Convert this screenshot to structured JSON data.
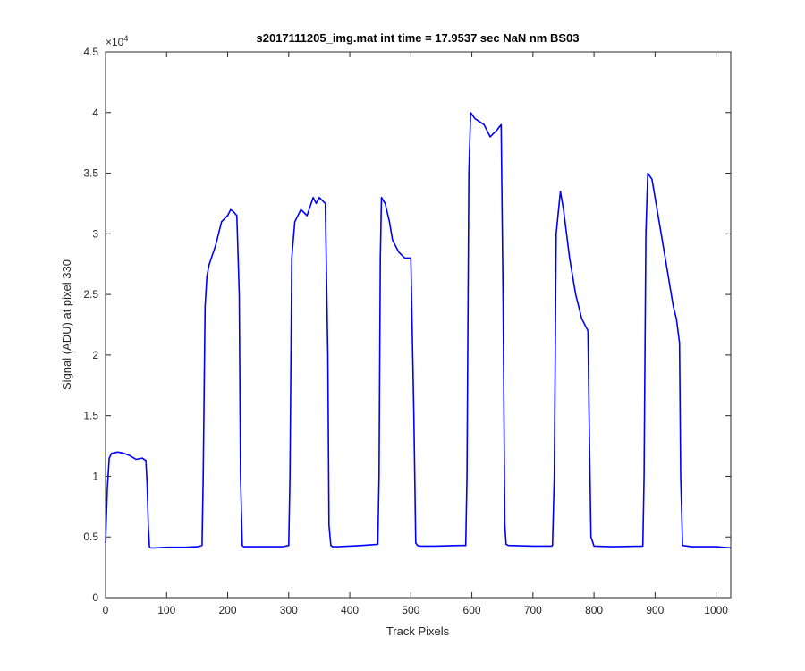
{
  "chart_data": {
    "type": "line",
    "title": "s2017111205_img.mat int time = 17.9537 sec  NaN nm BS03",
    "xlabel": "Track Pixels",
    "ylabel": "Signal (ADU) at pixel 330",
    "xlim": [
      0,
      1024
    ],
    "ylim": [
      0,
      45000
    ],
    "x_ticks": [
      0,
      100,
      200,
      300,
      400,
      500,
      600,
      700,
      800,
      900,
      1000
    ],
    "x_tick_labels": [
      "0",
      "100",
      "200",
      "300",
      "400",
      "500",
      "600",
      "700",
      "800",
      "900",
      "1000"
    ],
    "y_ticks": [
      0,
      5000,
      10000,
      15000,
      20000,
      25000,
      30000,
      35000,
      40000,
      45000
    ],
    "y_tick_labels": [
      "0",
      "0.5",
      "1",
      "1.5",
      "2",
      "2.5",
      "3",
      "3.5",
      "4",
      "4.5"
    ],
    "y_exponent_base": "×10",
    "y_exponent_power": "4",
    "grid": false,
    "line_color": "#0000ff",
    "series": [
      {
        "x": [
          0,
          3,
          6,
          10,
          20,
          30,
          40,
          50,
          60,
          66,
          68,
          70,
          72,
          74,
          80,
          100,
          130,
          150,
          158,
          160,
          163,
          166,
          170,
          180,
          190,
          200,
          205,
          210,
          215,
          219,
          221,
          224,
          226,
          230,
          260,
          290,
          300,
          302,
          305,
          310,
          320,
          330,
          340,
          345,
          350,
          360,
          364,
          366,
          369,
          372,
          380,
          420,
          446,
          448,
          450,
          452,
          458,
          465,
          470,
          480,
          490,
          500,
          505,
          508,
          511,
          515,
          540,
          580,
          590,
          592,
          595,
          598,
          605,
          620,
          630,
          640,
          648,
          651,
          654,
          656,
          660,
          700,
          730,
          732,
          735,
          738,
          745,
          750,
          760,
          770,
          780,
          790,
          792,
          795,
          800,
          830,
          880,
          882,
          885,
          888,
          895,
          910,
          920,
          930,
          935,
          940,
          942,
          945,
          960,
          1000,
          1024
        ],
        "y": [
          4500,
          9000,
          11500,
          11900,
          12000,
          11900,
          11700,
          11400,
          11500,
          11300,
          9500,
          6000,
          4200,
          4100,
          4100,
          4150,
          4150,
          4200,
          4300,
          10000,
          24000,
          26500,
          27500,
          29000,
          31000,
          31500,
          32000,
          31800,
          31500,
          25000,
          10000,
          4300,
          4200,
          4200,
          4200,
          4200,
          4300,
          10000,
          28000,
          31000,
          32000,
          31500,
          33000,
          32500,
          33000,
          32500,
          20000,
          6000,
          4300,
          4200,
          4200,
          4300,
          4400,
          10000,
          28000,
          33000,
          32500,
          31000,
          29500,
          28500,
          28000,
          28000,
          15000,
          4500,
          4300,
          4250,
          4250,
          4300,
          4300,
          10000,
          35000,
          40000,
          39500,
          39000,
          38000,
          38500,
          39000,
          25000,
          6000,
          4400,
          4300,
          4250,
          4250,
          4300,
          10000,
          30000,
          33500,
          32000,
          28000,
          25000,
          23000,
          22000,
          15000,
          5000,
          4250,
          4200,
          4250,
          10000,
          30000,
          35000,
          34500,
          30000,
          27000,
          24000,
          23000,
          21000,
          10000,
          4300,
          4200,
          4200,
          4100
        ]
      }
    ]
  }
}
